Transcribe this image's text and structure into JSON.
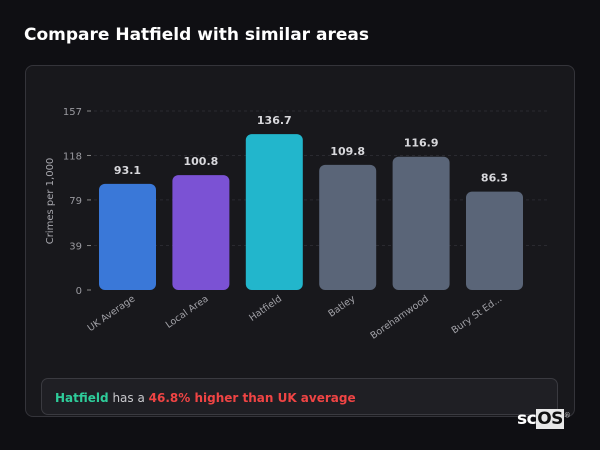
{
  "title": "Compare Hatfield with similar areas",
  "chart_data": {
    "type": "bar",
    "categories": [
      "UK Average",
      "Local Area",
      "Hatfield",
      "Batley",
      "Borehamwood",
      "Bury St Ed..."
    ],
    "values": [
      93.1,
      100.8,
      136.7,
      109.8,
      116.9,
      86.3
    ],
    "colors": [
      "#3a78d8",
      "#7b52d4",
      "#22b6cc",
      "#5a6578",
      "#5a6578",
      "#5a6578"
    ],
    "ylabel": "Crimes per 1,000",
    "yticks": [
      0,
      39,
      79,
      118,
      157
    ],
    "ylim": [
      0,
      157
    ],
    "grid": true
  },
  "insight": {
    "area": "Hatfield",
    "middle": " has a ",
    "highlight": "46.8% higher than UK average",
    "area_color": "#2ecc9a",
    "highlight_color": "#ef4444"
  },
  "logo": {
    "text_a": "sc",
    "text_b": "OS",
    "mark": "®"
  }
}
